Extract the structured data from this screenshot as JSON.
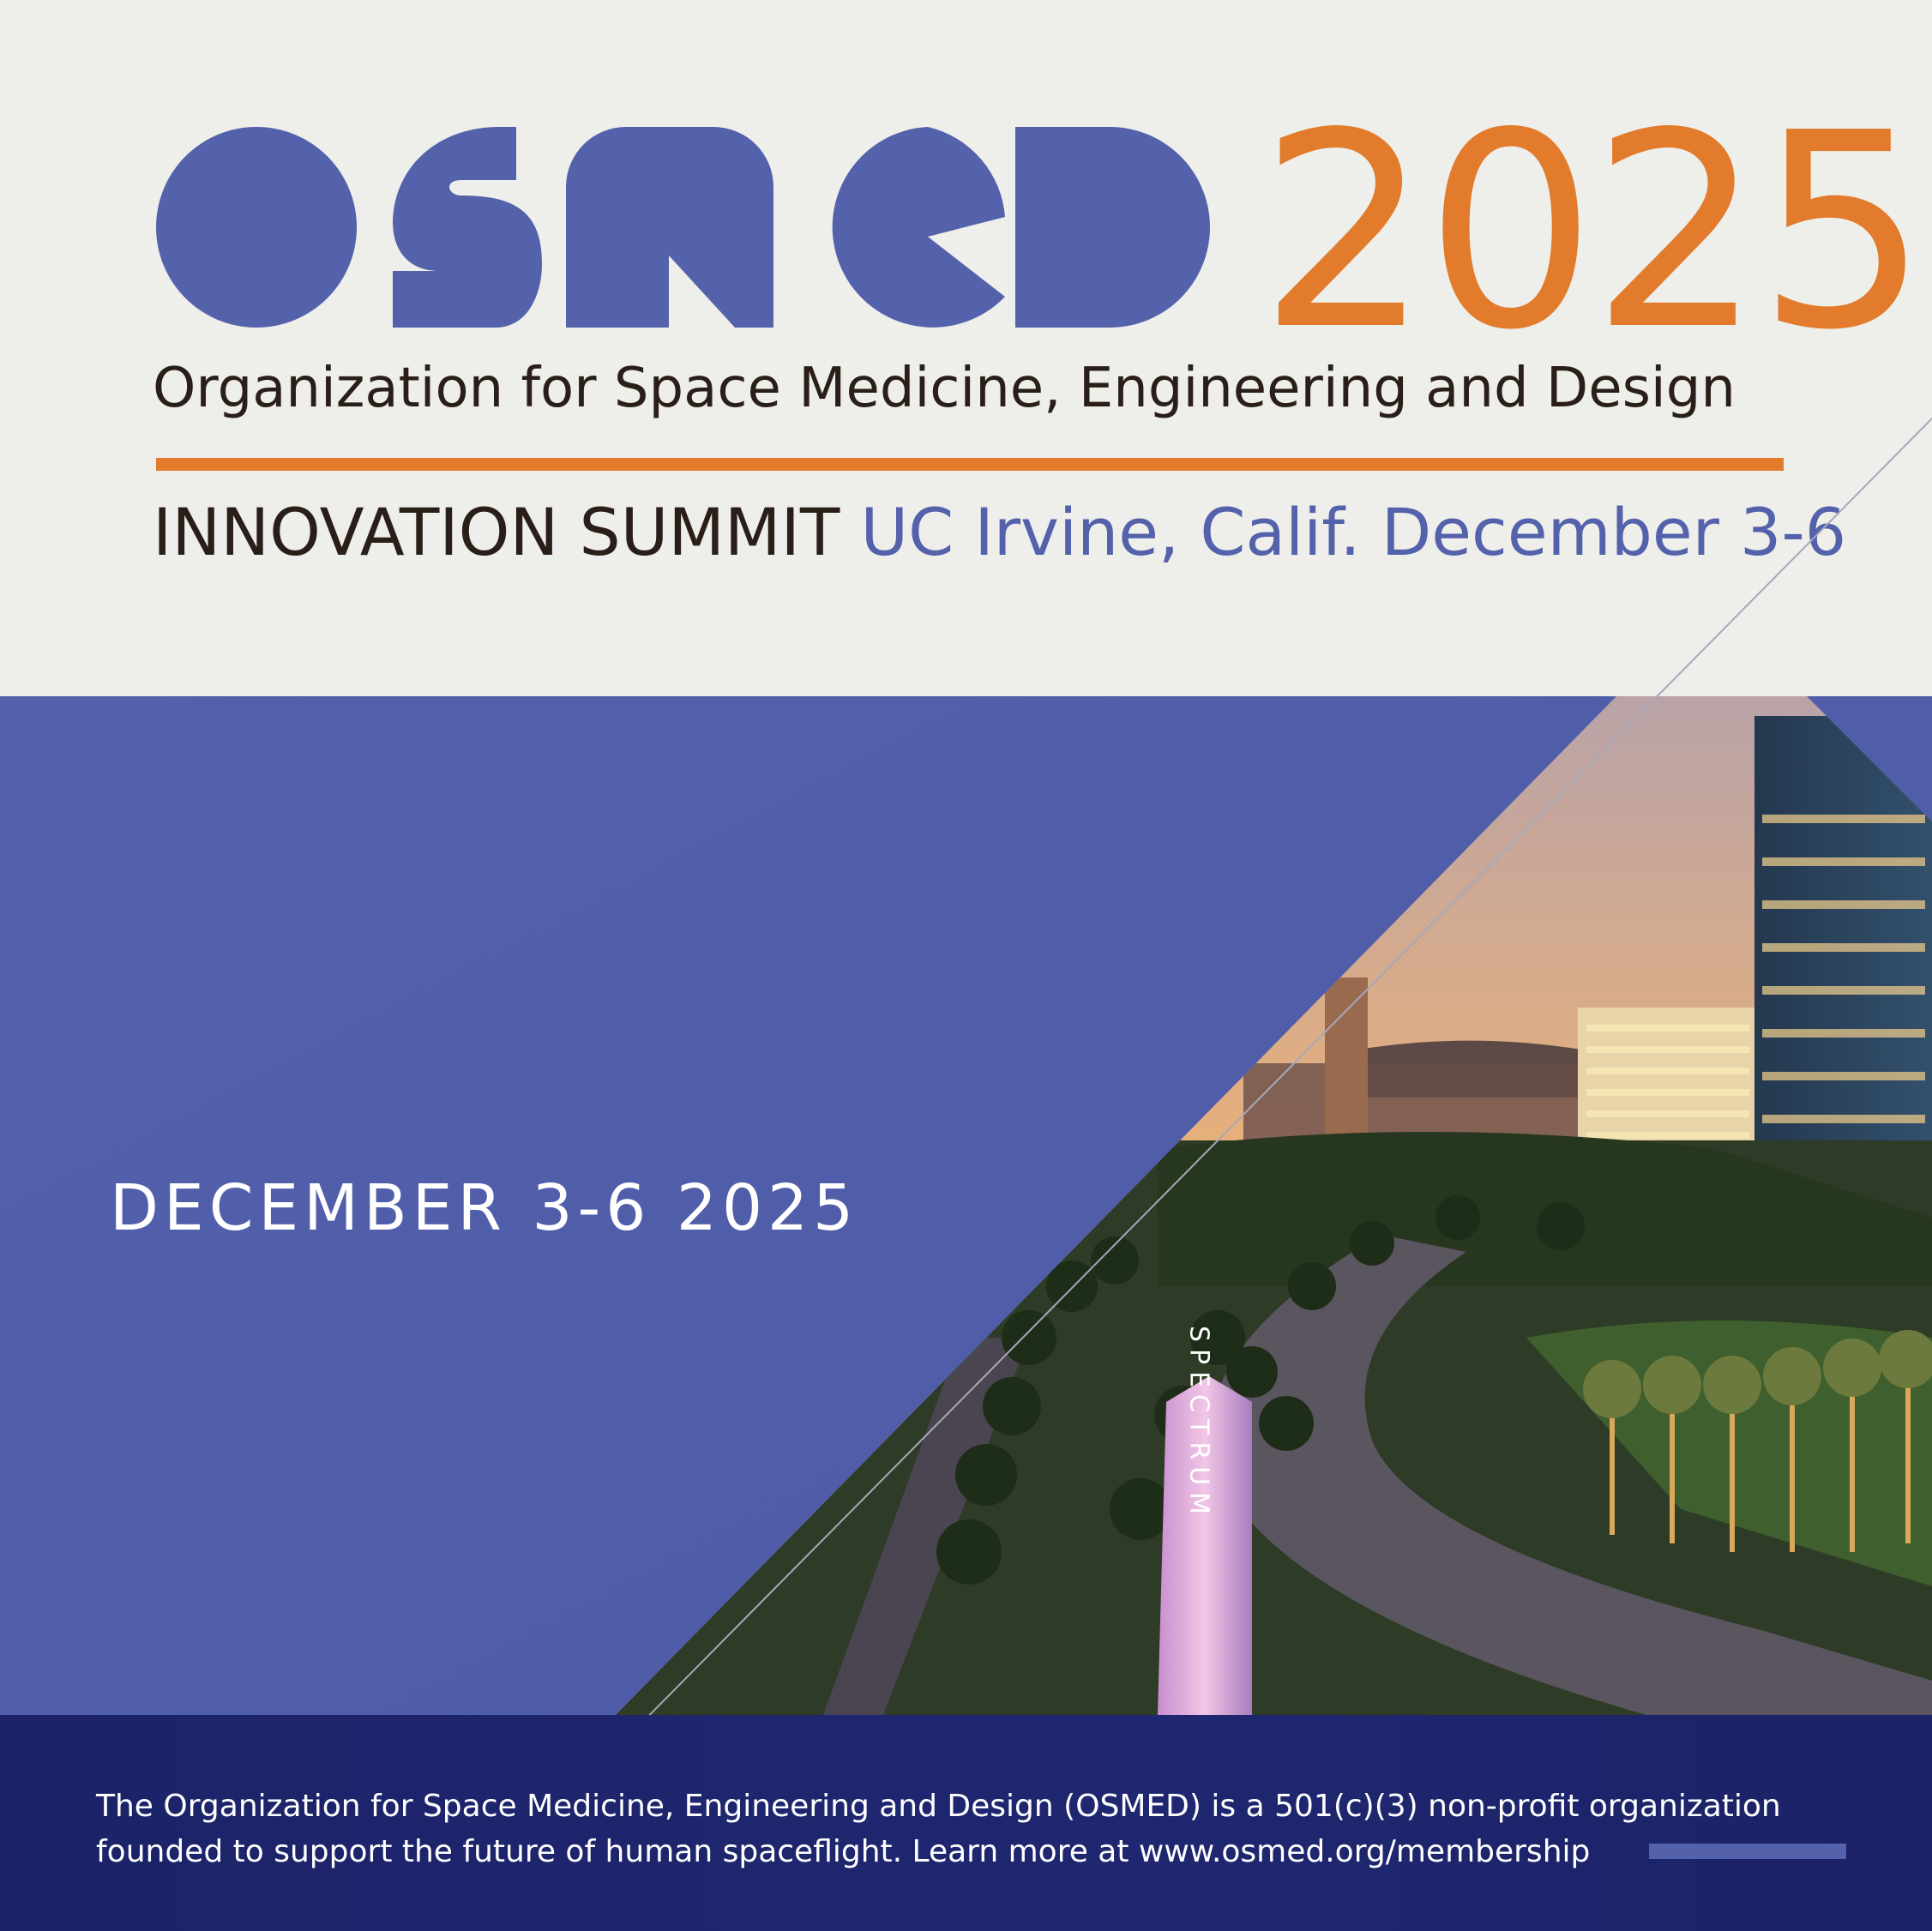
{
  "brand": {
    "logo_text": "OSMED",
    "year": "2025",
    "primary_color": "#5461ab",
    "accent_color": "#e27b2c",
    "dark_text_color": "#2a1f18",
    "footer_color": "#1e2570"
  },
  "header": {
    "organization_name": "Organization for Space Medicine, Engineering and Design",
    "summit_label": "INNOVATION SUMMIT",
    "summit_location_date": "UC Irvine, Calif. December 3-6"
  },
  "panel": {
    "date_text": "DECEMBER 3-6 2025",
    "photo_sign_text": "SPECTRUM"
  },
  "footer": {
    "line1": "The Organization for Space Medicine, Engineering and Design (OSMED) is a 501(c)(3) non-profit organization",
    "line2": "founded to support the future of human spaceflight. Learn more at www.osmed.org/membership"
  }
}
